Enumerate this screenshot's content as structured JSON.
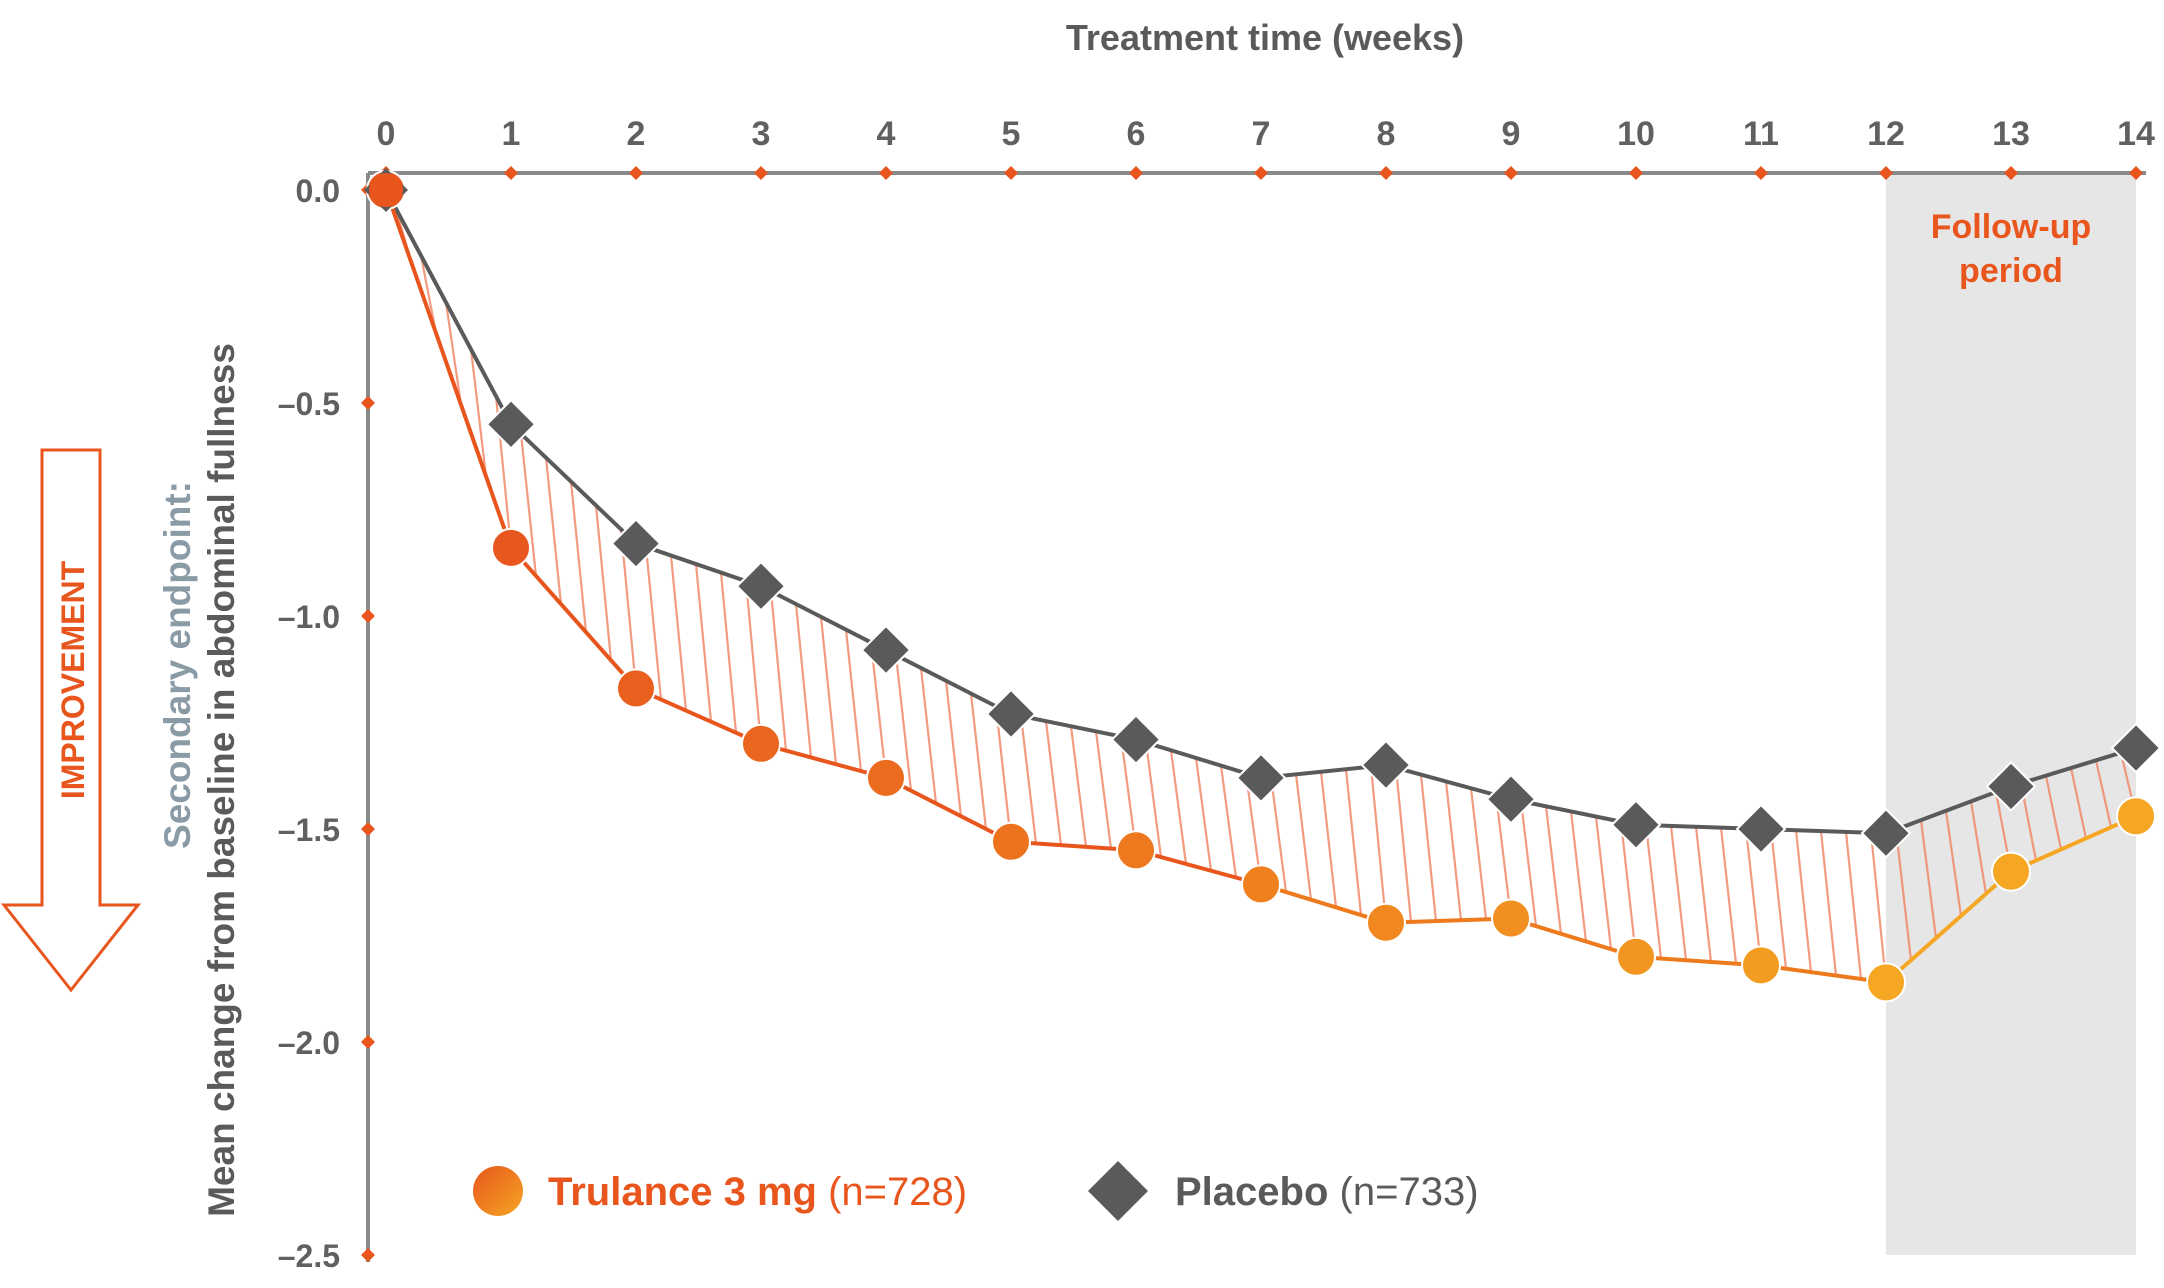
{
  "colors": {
    "trulance": "#E8561E",
    "trulance_light": "#F5A623",
    "placebo": "#5A5A5A",
    "axis": "#8A8A8A",
    "hatch": "#F08A6A",
    "followup_bg": "#E6E6E6",
    "improvement": "#E8561E",
    "secondary_label": "#8A9BA5"
  },
  "chart_data": {
    "type": "line",
    "xlabel": "Treatment time (weeks)",
    "ylabel_line1": "Secondary endpoint:",
    "ylabel_line2": "Mean change from baseline in abdominal fullness",
    "x": [
      0,
      1,
      2,
      3,
      4,
      5,
      6,
      7,
      8,
      9,
      10,
      11,
      12,
      13,
      14
    ],
    "xlim": [
      0,
      14
    ],
    "ylim": [
      -2.5,
      0.0
    ],
    "y_ticks": [
      0.0,
      -0.5,
      -1.0,
      -1.5,
      -2.0,
      -2.5
    ],
    "y_tick_labels": [
      "0.0",
      "–0.5",
      "–1.0",
      "–1.5",
      "–2.0",
      "–2.5"
    ],
    "x_tick_labels": [
      "0",
      "1",
      "2",
      "3",
      "4",
      "5",
      "6",
      "7",
      "8",
      "9",
      "10",
      "11",
      "12",
      "13",
      "14"
    ],
    "series": [
      {
        "name": "Trulance 3 mg",
        "n_label": "(n=728)",
        "marker": "circle",
        "values": [
          0.0,
          -0.84,
          -1.17,
          -1.3,
          -1.38,
          -1.53,
          -1.55,
          -1.63,
          -1.72,
          -1.71,
          -1.8,
          -1.82,
          -1.86,
          -1.6,
          -1.47
        ]
      },
      {
        "name": "Placebo",
        "n_label": "(n=733)",
        "marker": "diamond",
        "values": [
          0.0,
          -0.55,
          -0.83,
          -0.93,
          -1.08,
          -1.23,
          -1.29,
          -1.38,
          -1.35,
          -1.43,
          -1.49,
          -1.5,
          -1.51,
          -1.4,
          -1.31
        ]
      }
    ],
    "shaded_region": {
      "label_line1": "Follow-up",
      "label_line2": "period",
      "x_range": [
        12,
        14
      ]
    },
    "side_annotation": "IMPROVEMENT"
  }
}
